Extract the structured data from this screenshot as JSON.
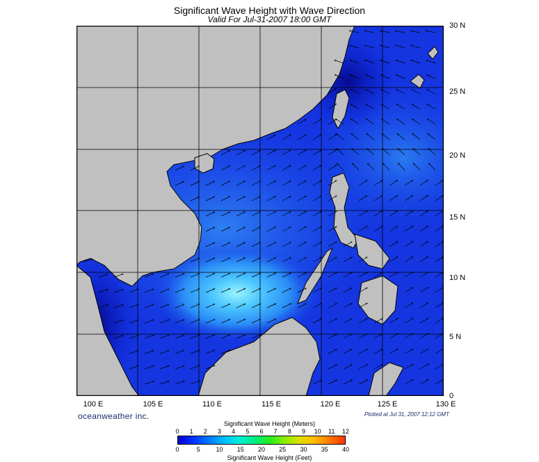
{
  "title": "Significant Wave Height with Wave Direction",
  "subtitle": "Valid For Jul-31-2007 18:00 GMT",
  "lat_labels": [
    "30 N",
    "25 N",
    "20 N",
    "15 N",
    "10 N",
    "5 N",
    "0"
  ],
  "lon_labels": [
    "100 E",
    "105 E",
    "110 E",
    "115 E",
    "120 E",
    "125 E",
    "130 E"
  ],
  "brand": "oceanweather inc.",
  "plotted": "Plotted at Jul 31, 2007 12:12 GMT",
  "colorbar": {
    "title_top": "Significant Wave Height (Meters)",
    "title_bottom": "Significant Wave Height (Feet)",
    "meter_ticks": [
      "0",
      "1",
      "2",
      "3",
      "4",
      "5",
      "6",
      "7",
      "8",
      "9",
      "10",
      "11",
      "12"
    ],
    "feet_ticks": [
      "0",
      "5",
      "10",
      "15",
      "20",
      "25",
      "30",
      "35",
      "40"
    ],
    "colors": [
      "#0000cc",
      "#0033ff",
      "#0077ff",
      "#00bbff",
      "#00eedd",
      "#00ee88",
      "#22ee22",
      "#88ee00",
      "#dddd00",
      "#ffbb00",
      "#ff7700",
      "#ff3300"
    ]
  },
  "colors": {
    "land": "#c0c0c0",
    "sea_low": "#0a20d8",
    "sea_mid": "#1c6cf0",
    "sea_high": "#5ad8ff",
    "grid": "#000000"
  }
}
